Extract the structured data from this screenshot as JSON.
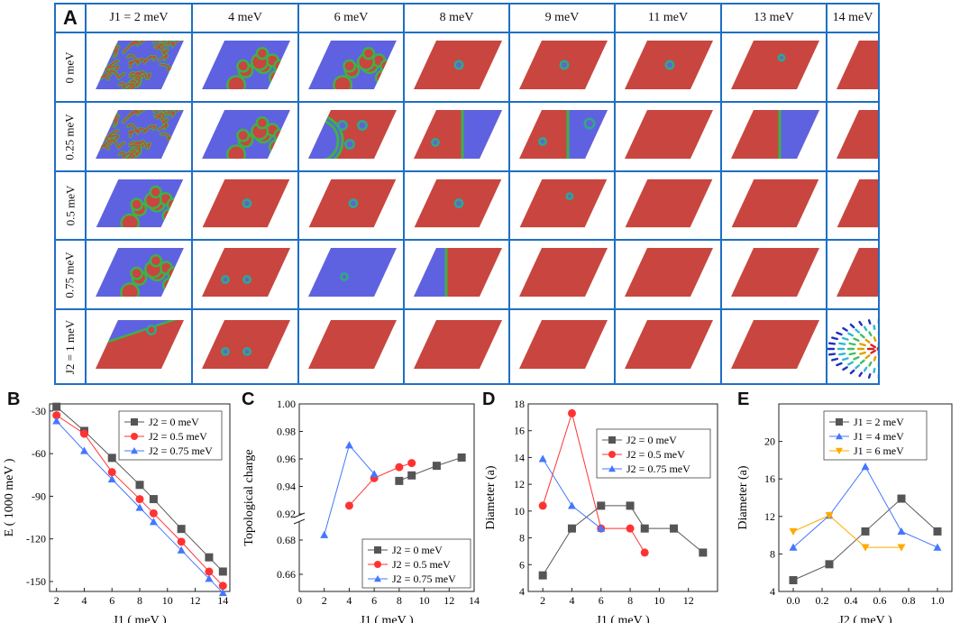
{
  "panel_labels": {
    "A": "A",
    "B": "B",
    "C": "C",
    "D": "D",
    "E": "E"
  },
  "grid": {
    "col_headers": [
      "J1 = 2 meV",
      "4 meV",
      "6 meV",
      "8 meV",
      "9 meV",
      "11 meV",
      "13 meV",
      "14 meV"
    ],
    "row_headers": [
      "0 meV",
      "0.25 meV",
      "0.5 meV",
      "0.75 meV",
      "J2 = 1 meV"
    ],
    "cells": [
      [
        "labyrinth",
        "labyrinth-bubbles",
        "bubbles",
        "skyrmion-1",
        "skyrmion-1",
        "skyrmion-1",
        "skyrmion-1-small",
        "ferro"
      ],
      [
        "labyrinth",
        "bubbles",
        "bubbles-domain",
        "domain-wall-skyrmion",
        "domain-wall-2skyrmions",
        "ferro",
        "domain-wall",
        "ferro"
      ],
      [
        "bubbles",
        "skyrmion-1",
        "skyrmion-1",
        "skyrmion-1",
        "skyrmion-1-small",
        "ferro",
        "ferro",
        "ferro"
      ],
      [
        "bubbles",
        "skyrmion-2",
        "blue-skyrmion",
        "domain-wall-blue",
        "ferro",
        "ferro",
        "ferro",
        "ferro"
      ],
      [
        "domain-wall-corner",
        "skyrmion-2",
        "ferro",
        "ferro",
        "ferro",
        "ferro",
        "ferro",
        "spin-texture"
      ]
    ]
  },
  "colors": {
    "red": "#c8463f",
    "blue": "#5f62e0",
    "green": "#3fb04a",
    "grid_line": "#1f6fc4",
    "s1": "#555555",
    "s2": "#ff3333",
    "s3": "#4477ff",
    "s4": "#ffaa00"
  },
  "chart_data": [
    {
      "id": "B",
      "type": "line",
      "xlabel": "J1 ( meV )",
      "ylabel": "E ( 1000 meV )",
      "xlim": [
        1.5,
        14.5
      ],
      "ylim": [
        -157,
        -25
      ],
      "xticks": [
        2,
        4,
        6,
        8,
        10,
        12,
        14
      ],
      "yticks": [
        -30,
        -60,
        -90,
        -120,
        -150
      ],
      "series": [
        {
          "name": "J2 = 0 meV",
          "marker": "square",
          "color": "#555555",
          "x": [
            2,
            4,
            6,
            8,
            9,
            11,
            13,
            14
          ],
          "y": [
            -27,
            -44,
            -63,
            -82,
            -92,
            -113,
            -133,
            -143
          ]
        },
        {
          "name": "J2 = 0.5 meV",
          "marker": "circle",
          "color": "#ff3333",
          "x": [
            2,
            4,
            6,
            8,
            9,
            11,
            13,
            14
          ],
          "y": [
            -33,
            -46,
            -73,
            -92,
            -102,
            -122,
            -143,
            -153
          ]
        },
        {
          "name": "J2 = 0.75 meV",
          "marker": "triangle",
          "color": "#4477ff",
          "x": [
            2,
            4,
            6,
            8,
            9,
            11,
            13,
            14
          ],
          "y": [
            -37,
            -58,
            -78,
            -98,
            -108,
            -128,
            -148,
            -158
          ]
        }
      ]
    },
    {
      "id": "C",
      "type": "line",
      "xlabel": "J1 ( meV )",
      "ylabel": "Topological charge",
      "xlim": [
        0,
        14
      ],
      "broken_axis": {
        "lower": [
          0.65,
          0.69
        ],
        "upper": [
          0.92,
          1.0
        ]
      },
      "xticks": [
        0,
        2,
        4,
        6,
        8,
        10,
        12,
        14
      ],
      "yticks_upper": [
        0.92,
        0.94,
        0.96,
        0.98,
        1.0
      ],
      "yticks_upper_labels": [
        "0.92",
        "0.94",
        "0.96",
        "0.98",
        "1.00"
      ],
      "yticks_lower": [
        0.66,
        0.68
      ],
      "yticks_lower_labels": [
        "0.66",
        "0.68"
      ],
      "series": [
        {
          "name": "J2 = 0 meV",
          "marker": "square",
          "color": "#555555",
          "x": [
            8,
            9,
            11,
            13
          ],
          "y": [
            0.944,
            0.948,
            0.955,
            0.961
          ]
        },
        {
          "name": "J2 = 0.5 meV",
          "marker": "circle",
          "color": "#ff3333",
          "x": [
            4,
            6,
            8,
            9
          ],
          "y": [
            0.926,
            0.946,
            0.954,
            0.957
          ]
        },
        {
          "name": "J2 = 0.75 meV",
          "marker": "triangle",
          "color": "#4477ff",
          "x": [
            2,
            4,
            6
          ],
          "y": [
            0.683,
            0.97,
            0.949
          ]
        }
      ]
    },
    {
      "id": "D",
      "type": "line",
      "xlabel": "J1 ( meV )",
      "ylabel": "Diameter (a)",
      "xlim": [
        1,
        14
      ],
      "ylim": [
        4,
        18
      ],
      "xticks": [
        2,
        4,
        6,
        8,
        10,
        12
      ],
      "yticks": [
        4,
        6,
        8,
        10,
        12,
        14,
        16,
        18
      ],
      "series": [
        {
          "name": "J2 = 0 meV",
          "marker": "square",
          "color": "#555555",
          "x": [
            2,
            4,
            6,
            8,
            9,
            11,
            13
          ],
          "y": [
            5.2,
            8.7,
            10.4,
            10.4,
            8.7,
            8.7,
            6.9
          ]
        },
        {
          "name": "J2 = 0.5 meV",
          "marker": "circle",
          "color": "#ff3333",
          "x": [
            2,
            4,
            6,
            8,
            9
          ],
          "y": [
            10.4,
            17.3,
            8.7,
            8.7,
            6.9
          ]
        },
        {
          "name": "J2 = 0.75 meV",
          "marker": "triangle",
          "color": "#4477ff",
          "x": [
            2,
            4,
            6
          ],
          "y": [
            13.9,
            10.4,
            8.7
          ]
        }
      ]
    },
    {
      "id": "E",
      "type": "line",
      "xlabel": "J2 ( meV )",
      "ylabel": "Diameter (a)",
      "xlim": [
        -0.1,
        1.1
      ],
      "ylim": [
        4,
        24
      ],
      "xticks": [
        0.0,
        0.2,
        0.4,
        0.6,
        0.8,
        1.0
      ],
      "xtick_labels": [
        "0.0",
        "0.2",
        "0.4",
        "0.6",
        "0.8",
        "1.0"
      ],
      "yticks": [
        4,
        8,
        12,
        16,
        20
      ],
      "series": [
        {
          "name": "J1 = 2 meV",
          "marker": "square",
          "color": "#555555",
          "x": [
            0,
            0.25,
            0.5,
            0.75,
            1.0
          ],
          "y": [
            5.2,
            6.9,
            10.4,
            13.9,
            10.4
          ]
        },
        {
          "name": "J1 = 4 meV",
          "marker": "triangle",
          "color": "#4477ff",
          "x": [
            0,
            0.25,
            0.5,
            0.75,
            1.0
          ],
          "y": [
            8.7,
            12.1,
            17.3,
            10.4,
            8.7
          ]
        },
        {
          "name": "J1 = 6 meV",
          "marker": "triangle-down",
          "color": "#ffaa00",
          "x": [
            0,
            0.25,
            0.5,
            0.75
          ],
          "y": [
            10.4,
            12.1,
            8.7,
            8.7
          ]
        }
      ]
    }
  ]
}
